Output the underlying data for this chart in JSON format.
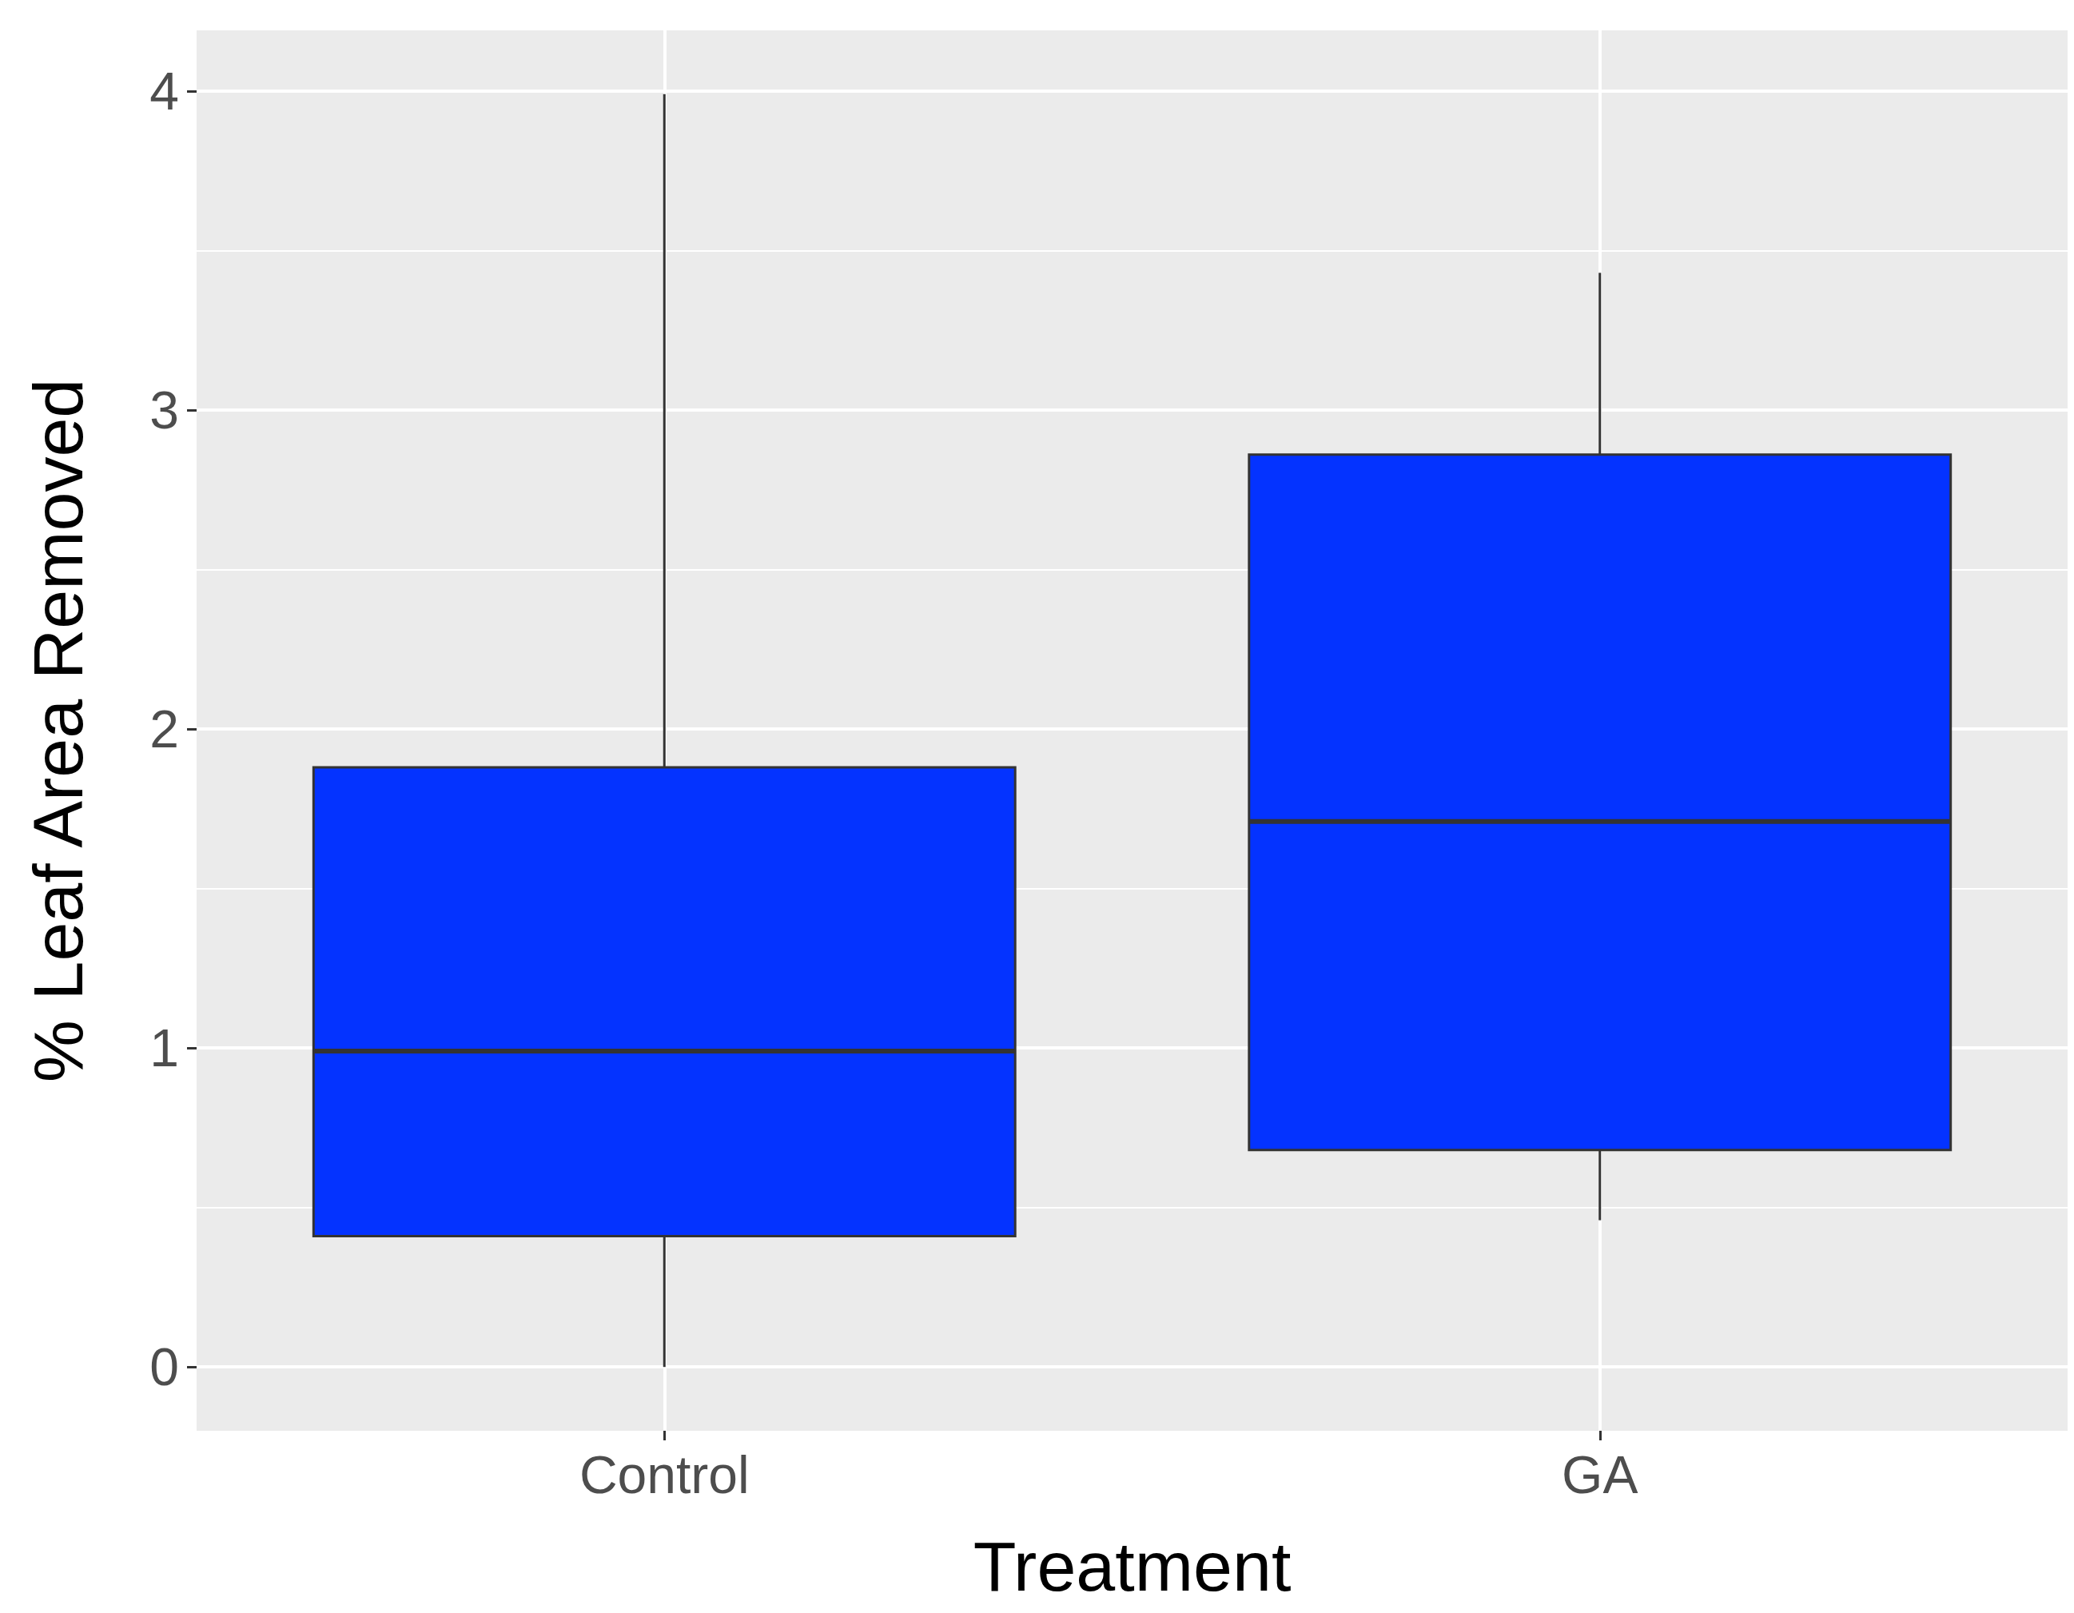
{
  "chart_data": {
    "type": "box",
    "xlabel": "Treatment",
    "ylabel": "% Leaf Area Removed",
    "categories": [
      "Control",
      "GA"
    ],
    "boxes": [
      {
        "low": 0,
        "q1": 0.41,
        "median": 0.99,
        "q3": 1.88,
        "high": 3.99
      },
      {
        "low": 0.46,
        "q1": 0.68,
        "median": 1.71,
        "q3": 2.86,
        "high": 3.43
      }
    ],
    "color": "#0433ff",
    "ylim": [
      -0.2,
      4.19
    ],
    "yticks": [
      0,
      1,
      2,
      3,
      4
    ],
    "grid": true
  }
}
